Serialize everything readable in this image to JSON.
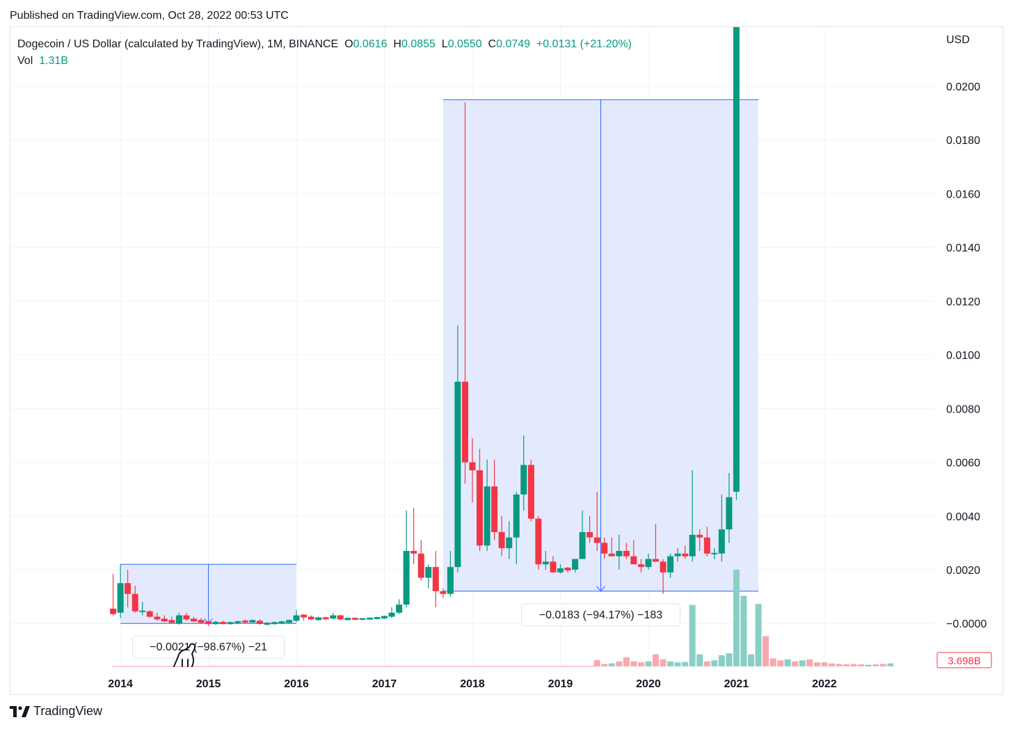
{
  "published": "Published on TradingView.com, Oct 28, 2022 00:53 UTC",
  "legend": {
    "title": "Dogecoin / US Dollar (calculated by TradingView), 1M, BINANCE",
    "o_label": "O",
    "o_value": "0.0616",
    "h_label": "H",
    "h_value": "0.0855",
    "l_label": "L",
    "l_value": "0.0550",
    "c_label": "C",
    "c_value": "0.0749",
    "change": "+0.0131 (+21.20%)",
    "vol_label": "Vol",
    "vol_value": "1.31B"
  },
  "brand": "TradingView",
  "colors": {
    "up": "#089981",
    "down": "#f23645",
    "range_fill": "#dfe6fd",
    "range_line": "#2962ff",
    "vol_up": "#89cfc4",
    "vol_down": "#f7a9ae"
  },
  "chart_data": {
    "type": "candlestick",
    "currency": "USD",
    "y_ticks": [
      "0.0200",
      "0.0180",
      "0.0160",
      "0.0140",
      "0.0120",
      "0.0100",
      "0.0080",
      "0.0060",
      "0.0040",
      "0.0020",
      "−0.0000"
    ],
    "y_tick_values": [
      0.02,
      0.018,
      0.016,
      0.014,
      0.012,
      0.01,
      0.008,
      0.006,
      0.004,
      0.002,
      0.0
    ],
    "ylim": [
      -0.0016,
      0.0222
    ],
    "x_ticks": [
      "2014",
      "2015",
      "2016",
      "2017",
      "2018",
      "2019",
      "2020",
      "2021",
      "2022"
    ],
    "x_tick_values": [
      2014,
      2015,
      2016,
      2017,
      2018,
      2019,
      2020,
      2021,
      2022
    ],
    "xlim": [
      2012.75,
      2023.25
    ],
    "volume_label": "3.698B",
    "candles": [
      {
        "t": 2013.917,
        "o": 0.00055,
        "h": 0.00185,
        "l": 0.0003,
        "c": 0.00035
      },
      {
        "t": 2014.0,
        "o": 0.0004,
        "h": 0.0022,
        "l": 0.0002,
        "c": 0.0015
      },
      {
        "t": 2014.083,
        "o": 0.0015,
        "h": 0.002,
        "l": 0.0006,
        "c": 0.0011
      },
      {
        "t": 2014.167,
        "o": 0.0011,
        "h": 0.0014,
        "l": 0.0004,
        "c": 0.00045
      },
      {
        "t": 2014.25,
        "o": 0.00045,
        "h": 0.0008,
        "l": 0.0003,
        "c": 0.00045
      },
      {
        "t": 2014.333,
        "o": 0.00045,
        "h": 0.0005,
        "l": 0.0002,
        "c": 0.00025
      },
      {
        "t": 2014.417,
        "o": 0.00025,
        "h": 0.0004,
        "l": 0.0001,
        "c": 0.00015
      },
      {
        "t": 2014.5,
        "o": 0.00015,
        "h": 0.0003,
        "l": 5e-05,
        "c": 0.0001
      },
      {
        "t": 2014.583,
        "o": 0.0001,
        "h": 0.00025,
        "l": 0.0,
        "c": 5e-05
      },
      {
        "t": 2014.667,
        "o": 0.0,
        "h": 0.0004,
        "l": -5e-05,
        "c": 0.0003
      },
      {
        "t": 2014.75,
        "o": 0.0003,
        "h": 0.0004,
        "l": 0.0001,
        "c": 0.00015
      },
      {
        "t": 2014.833,
        "o": 0.00015,
        "h": 0.00025,
        "l": 5e-05,
        "c": 0.0001
      },
      {
        "t": 2014.917,
        "o": 0.0001,
        "h": 0.0002,
        "l": 0.0,
        "c": 5e-05
      },
      {
        "t": 2015.0,
        "o": 5e-05,
        "h": 0.0001,
        "l": -0.0001,
        "c": 0.0
      },
      {
        "t": 2015.083,
        "o": 0.0,
        "h": 0.0001,
        "l": -5e-05,
        "c": 3e-05
      },
      {
        "t": 2015.167,
        "o": 3e-05,
        "h": 0.0001,
        "l": -3e-05,
        "c": 0.0
      },
      {
        "t": 2015.25,
        "o": 0.0,
        "h": 8e-05,
        "l": -5e-05,
        "c": 2e-05
      },
      {
        "t": 2015.333,
        "o": 2e-05,
        "h": 0.0001,
        "l": -3e-05,
        "c": 8e-05
      },
      {
        "t": 2015.417,
        "o": 8e-05,
        "h": 0.00015,
        "l": 0.0,
        "c": 6e-05
      },
      {
        "t": 2015.5,
        "o": 6e-05,
        "h": 0.00015,
        "l": 2e-05,
        "c": 0.0001
      },
      {
        "t": 2015.583,
        "o": 0.0001,
        "h": 0.00015,
        "l": -5e-05,
        "c": -2e-05
      },
      {
        "t": 2015.667,
        "o": -2e-05,
        "h": 5e-05,
        "l": -8e-05,
        "c": 0.0
      },
      {
        "t": 2015.75,
        "o": 0.0,
        "h": 8e-05,
        "l": -5e-05,
        "c": 2e-05
      },
      {
        "t": 2015.833,
        "o": 2e-05,
        "h": 0.0001,
        "l": -3e-05,
        "c": 5e-05
      },
      {
        "t": 2015.917,
        "o": 5e-05,
        "h": 0.00015,
        "l": 0.0,
        "c": 0.0001
      },
      {
        "t": 2016.0,
        "o": 0.0001,
        "h": 0.0005,
        "l": 5e-05,
        "c": 0.0003
      },
      {
        "t": 2016.083,
        "o": 0.0003,
        "h": 0.00035,
        "l": 0.0001,
        "c": 0.00025
      },
      {
        "t": 2016.167,
        "o": 0.00025,
        "h": 0.0003,
        "l": 0.00012,
        "c": 0.00015
      },
      {
        "t": 2016.25,
        "o": 0.00015,
        "h": 0.00025,
        "l": 0.0001,
        "c": 0.0002
      },
      {
        "t": 2016.333,
        "o": 0.0002,
        "h": 0.00025,
        "l": 0.00012,
        "c": 0.00018
      },
      {
        "t": 2016.417,
        "o": 0.00018,
        "h": 0.0004,
        "l": 0.00015,
        "c": 0.0003
      },
      {
        "t": 2016.5,
        "o": 0.0003,
        "h": 0.00032,
        "l": 0.00012,
        "c": 0.00015
      },
      {
        "t": 2016.583,
        "o": 0.00015,
        "h": 0.00022,
        "l": 0.00012,
        "c": 0.00018
      },
      {
        "t": 2016.667,
        "o": 0.00018,
        "h": 0.00022,
        "l": 0.00012,
        "c": 0.00016
      },
      {
        "t": 2016.75,
        "o": 0.00016,
        "h": 0.0002,
        "l": 0.00012,
        "c": 0.00017
      },
      {
        "t": 2016.833,
        "o": 0.00017,
        "h": 0.00022,
        "l": 0.00014,
        "c": 0.00019
      },
      {
        "t": 2016.917,
        "o": 0.00019,
        "h": 0.00025,
        "l": 0.00015,
        "c": 0.00021
      },
      {
        "t": 2017.0,
        "o": 0.00021,
        "h": 0.0003,
        "l": 0.00016,
        "c": 0.00025
      },
      {
        "t": 2017.083,
        "o": 0.00025,
        "h": 0.0006,
        "l": 0.0002,
        "c": 0.0004
      },
      {
        "t": 2017.167,
        "o": 0.0004,
        "h": 0.0009,
        "l": 0.00035,
        "c": 0.0007
      },
      {
        "t": 2017.25,
        "o": 0.0007,
        "h": 0.0042,
        "l": 0.0006,
        "c": 0.0027
      },
      {
        "t": 2017.333,
        "o": 0.0027,
        "h": 0.0043,
        "l": 0.0022,
        "c": 0.0026
      },
      {
        "t": 2017.417,
        "o": 0.0026,
        "h": 0.0031,
        "l": 0.0016,
        "c": 0.0017
      },
      {
        "t": 2017.5,
        "o": 0.0017,
        "h": 0.0022,
        "l": 0.0013,
        "c": 0.0021
      },
      {
        "t": 2017.583,
        "o": 0.0021,
        "h": 0.0027,
        "l": 0.0006,
        "c": 0.0012
      },
      {
        "t": 2017.667,
        "o": 0.0012,
        "h": 0.0013,
        "l": 0.00095,
        "c": 0.0011
      },
      {
        "t": 2017.75,
        "o": 0.0011,
        "h": 0.0027,
        "l": 0.001,
        "c": 0.0021
      },
      {
        "t": 2017.833,
        "o": 0.0021,
        "h": 0.0111,
        "l": 0.0019,
        "c": 0.009
      },
      {
        "t": 2017.917,
        "o": 0.009,
        "h": 0.0194,
        "l": 0.0052,
        "c": 0.006
      },
      {
        "t": 2018.0,
        "o": 0.006,
        "h": 0.0069,
        "l": 0.0045,
        "c": 0.0057
      },
      {
        "t": 2018.083,
        "o": 0.0057,
        "h": 0.0065,
        "l": 0.0027,
        "c": 0.0029
      },
      {
        "t": 2018.167,
        "o": 0.0029,
        "h": 0.0061,
        "l": 0.0027,
        "c": 0.0051
      },
      {
        "t": 2018.25,
        "o": 0.0051,
        "h": 0.0061,
        "l": 0.0031,
        "c": 0.0034
      },
      {
        "t": 2018.333,
        "o": 0.0034,
        "h": 0.004,
        "l": 0.0025,
        "c": 0.0028
      },
      {
        "t": 2018.417,
        "o": 0.0028,
        "h": 0.0038,
        "l": 0.0024,
        "c": 0.0032
      },
      {
        "t": 2018.5,
        "o": 0.0032,
        "h": 0.0049,
        "l": 0.0022,
        "c": 0.0048
      },
      {
        "t": 2018.583,
        "o": 0.0048,
        "h": 0.007,
        "l": 0.0042,
        "c": 0.0059
      },
      {
        "t": 2018.667,
        "o": 0.0059,
        "h": 0.0061,
        "l": 0.0038,
        "c": 0.0039
      },
      {
        "t": 2018.75,
        "o": 0.0039,
        "h": 0.004,
        "l": 0.002,
        "c": 0.0022
      },
      {
        "t": 2018.833,
        "o": 0.0022,
        "h": 0.0027,
        "l": 0.002,
        "c": 0.0023
      },
      {
        "t": 2018.917,
        "o": 0.0023,
        "h": 0.0025,
        "l": 0.0019,
        "c": 0.0019
      },
      {
        "t": 2019.0,
        "o": 0.0019,
        "h": 0.0022,
        "l": 0.00185,
        "c": 0.00205
      },
      {
        "t": 2019.083,
        "o": 0.00205,
        "h": 0.0021,
        "l": 0.0019,
        "c": 0.002
      },
      {
        "t": 2019.167,
        "o": 0.002,
        "h": 0.0024,
        "l": 0.0019,
        "c": 0.0024
      },
      {
        "t": 2019.25,
        "o": 0.0024,
        "h": 0.0042,
        "l": 0.0024,
        "c": 0.0034
      },
      {
        "t": 2019.333,
        "o": 0.0034,
        "h": 0.004,
        "l": 0.003,
        "c": 0.0032
      },
      {
        "t": 2019.417,
        "o": 0.0032,
        "h": 0.0049,
        "l": 0.0027,
        "c": 0.003
      },
      {
        "t": 2019.5,
        "o": 0.003,
        "h": 0.0032,
        "l": 0.0024,
        "c": 0.0026
      },
      {
        "t": 2019.583,
        "o": 0.0026,
        "h": 0.0032,
        "l": 0.0025,
        "c": 0.0025
      },
      {
        "t": 2019.667,
        "o": 0.0025,
        "h": 0.0033,
        "l": 0.002,
        "c": 0.0027
      },
      {
        "t": 2019.75,
        "o": 0.0027,
        "h": 0.003,
        "l": 0.0024,
        "c": 0.0025
      },
      {
        "t": 2019.833,
        "o": 0.0025,
        "h": 0.0031,
        "l": 0.0022,
        "c": 0.0022
      },
      {
        "t": 2019.917,
        "o": 0.0022,
        "h": 0.0024,
        "l": 0.0019,
        "c": 0.0021
      },
      {
        "t": 2020.0,
        "o": 0.0021,
        "h": 0.0026,
        "l": 0.002,
        "c": 0.0024
      },
      {
        "t": 2020.083,
        "o": 0.0024,
        "h": 0.0037,
        "l": 0.0023,
        "c": 0.0023
      },
      {
        "t": 2020.167,
        "o": 0.0023,
        "h": 0.0024,
        "l": 0.0011,
        "c": 0.0019
      },
      {
        "t": 2020.25,
        "o": 0.0019,
        "h": 0.0026,
        "l": 0.0017,
        "c": 0.0025
      },
      {
        "t": 2020.333,
        "o": 0.0025,
        "h": 0.0028,
        "l": 0.0023,
        "c": 0.0026
      },
      {
        "t": 2020.417,
        "o": 0.0026,
        "h": 0.0029,
        "l": 0.0024,
        "c": 0.0025
      },
      {
        "t": 2020.5,
        "o": 0.0025,
        "h": 0.0057,
        "l": 0.0023,
        "c": 0.0033
      },
      {
        "t": 2020.583,
        "o": 0.0033,
        "h": 0.0035,
        "l": 0.0027,
        "c": 0.0032
      },
      {
        "t": 2020.667,
        "o": 0.0032,
        "h": 0.0036,
        "l": 0.0025,
        "c": 0.0026
      },
      {
        "t": 2020.75,
        "o": 0.0026,
        "h": 0.0028,
        "l": 0.0024,
        "c": 0.0026
      },
      {
        "t": 2020.833,
        "o": 0.0026,
        "h": 0.0048,
        "l": 0.0023,
        "c": 0.0035
      },
      {
        "t": 2020.917,
        "o": 0.0035,
        "h": 0.0056,
        "l": 0.003,
        "c": 0.0047
      },
      {
        "t": 2021.0,
        "o": 0.0049,
        "h": 0.0222,
        "l": 0.0046,
        "c": 0.0222
      }
    ],
    "volumes": [
      {
        "t": 2019.417,
        "v": 0.32,
        "dir": "down"
      },
      {
        "t": 2019.5,
        "v": 0.12,
        "dir": "down"
      },
      {
        "t": 2019.583,
        "v": 0.15,
        "dir": "up"
      },
      {
        "t": 2019.667,
        "v": 0.25,
        "dir": "down"
      },
      {
        "t": 2019.75,
        "v": 0.45,
        "dir": "down"
      },
      {
        "t": 2019.833,
        "v": 0.25,
        "dir": "down"
      },
      {
        "t": 2019.917,
        "v": 0.2,
        "dir": "down"
      },
      {
        "t": 2020.0,
        "v": 0.25,
        "dir": "up"
      },
      {
        "t": 2020.083,
        "v": 0.6,
        "dir": "down"
      },
      {
        "t": 2020.167,
        "v": 0.35,
        "dir": "down"
      },
      {
        "t": 2020.25,
        "v": 0.25,
        "dir": "up"
      },
      {
        "t": 2020.333,
        "v": 0.2,
        "dir": "up"
      },
      {
        "t": 2020.417,
        "v": 0.22,
        "dir": "up"
      },
      {
        "t": 2020.5,
        "v": 3.05,
        "dir": "up"
      },
      {
        "t": 2020.583,
        "v": 0.6,
        "dir": "up"
      },
      {
        "t": 2020.667,
        "v": 0.25,
        "dir": "down"
      },
      {
        "t": 2020.75,
        "v": 0.3,
        "dir": "up"
      },
      {
        "t": 2020.833,
        "v": 0.55,
        "dir": "up"
      },
      {
        "t": 2020.917,
        "v": 0.65,
        "dir": "up"
      },
      {
        "t": 2021.0,
        "v": 4.8,
        "dir": "up"
      },
      {
        "t": 2021.083,
        "v": 3.5,
        "dir": "up"
      },
      {
        "t": 2021.167,
        "v": 0.6,
        "dir": "up"
      },
      {
        "t": 2021.25,
        "v": 3.1,
        "dir": "up"
      },
      {
        "t": 2021.333,
        "v": 1.5,
        "dir": "down"
      },
      {
        "t": 2021.417,
        "v": 0.4,
        "dir": "down"
      },
      {
        "t": 2021.5,
        "v": 0.3,
        "dir": "down"
      },
      {
        "t": 2021.583,
        "v": 0.35,
        "dir": "up"
      },
      {
        "t": 2021.667,
        "v": 0.25,
        "dir": "down"
      },
      {
        "t": 2021.75,
        "v": 0.3,
        "dir": "up"
      },
      {
        "t": 2021.833,
        "v": 0.35,
        "dir": "down"
      },
      {
        "t": 2021.917,
        "v": 0.2,
        "dir": "down"
      },
      {
        "t": 2022.0,
        "v": 0.2,
        "dir": "down"
      },
      {
        "t": 2022.083,
        "v": 0.15,
        "dir": "down"
      },
      {
        "t": 2022.167,
        "v": 0.12,
        "dir": "down"
      },
      {
        "t": 2022.25,
        "v": 0.1,
        "dir": "down"
      },
      {
        "t": 2022.333,
        "v": 0.12,
        "dir": "down"
      },
      {
        "t": 2022.417,
        "v": 0.1,
        "dir": "down"
      },
      {
        "t": 2022.5,
        "v": 0.08,
        "dir": "up"
      },
      {
        "t": 2022.583,
        "v": 0.1,
        "dir": "down"
      },
      {
        "t": 2022.667,
        "v": 0.12,
        "dir": "down"
      },
      {
        "t": 2022.75,
        "v": 0.15,
        "dir": "up"
      }
    ],
    "measures": [
      {
        "t1": 2014.0,
        "t2": 2016.0,
        "top": 0.0022,
        "bottom": 0.0,
        "label": "−0.0021 (−98.67%) −21"
      },
      {
        "t1": 2017.667,
        "t2": 2021.25,
        "top": 0.0195,
        "bottom": 0.0012,
        "label": "−0.0183 (−94.17%) −183"
      }
    ]
  }
}
